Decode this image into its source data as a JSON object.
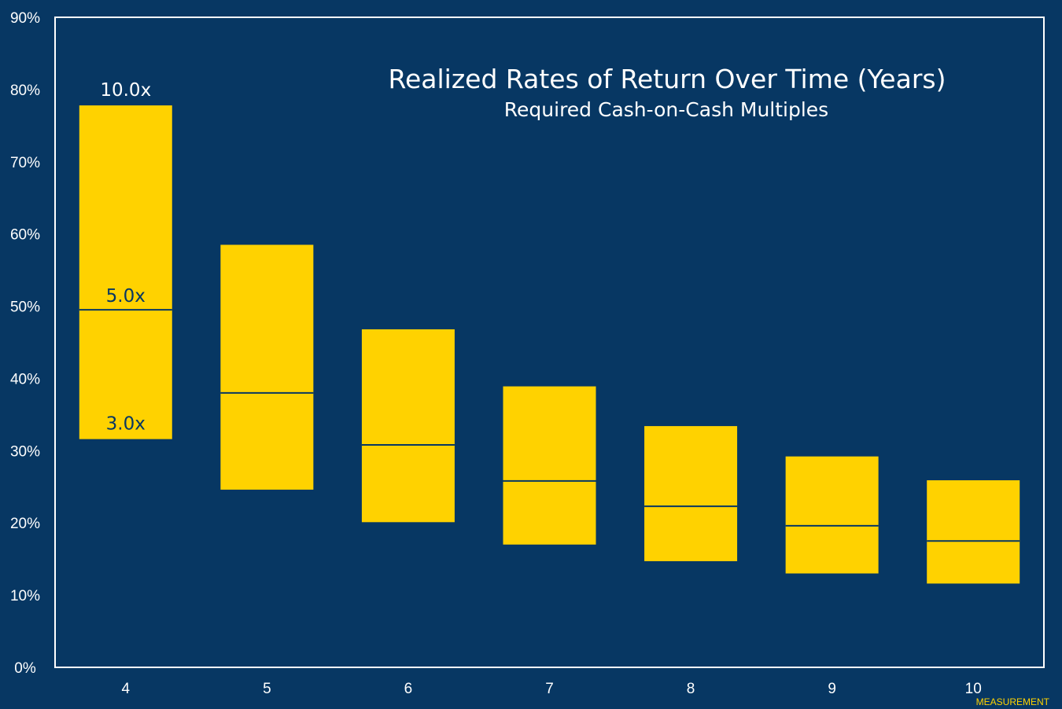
{
  "chart_data": {
    "type": "bar",
    "title": "Realized Rates of Return Over Time (Years)",
    "subtitle": "Required Cash-on-Cash Multiples",
    "xlabel": "",
    "ylabel": "",
    "categories": [
      "4",
      "5",
      "6",
      "7",
      "8",
      "9",
      "10"
    ],
    "series": [
      {
        "name": "3.0x",
        "values": [
          31.6,
          24.6,
          20.1,
          17.0,
          14.7,
          13.0,
          11.6
        ]
      },
      {
        "name": "5.0x",
        "values": [
          49.5,
          38.0,
          30.8,
          25.8,
          22.3,
          19.6,
          17.5
        ]
      },
      {
        "name": "10.0x",
        "values": [
          77.8,
          58.5,
          46.8,
          38.9,
          33.4,
          29.2,
          25.9
        ]
      }
    ],
    "annotations": [
      "10.0x",
      "5.0x",
      "3.0x"
    ],
    "annotation_category": "4",
    "yticks": [
      "0%",
      "10%",
      "20%",
      "30%",
      "40%",
      "50%",
      "60%",
      "70%",
      "80%",
      "90%"
    ],
    "ylim": [
      0,
      90
    ],
    "grid": false,
    "colors": {
      "background": "#073763",
      "bar": "#ffd200",
      "line": "#073763",
      "text": "#ffffff",
      "annotation": "#ffffff",
      "annotation_dark": "#073763"
    }
  },
  "watermark": "MEASUREMENT"
}
